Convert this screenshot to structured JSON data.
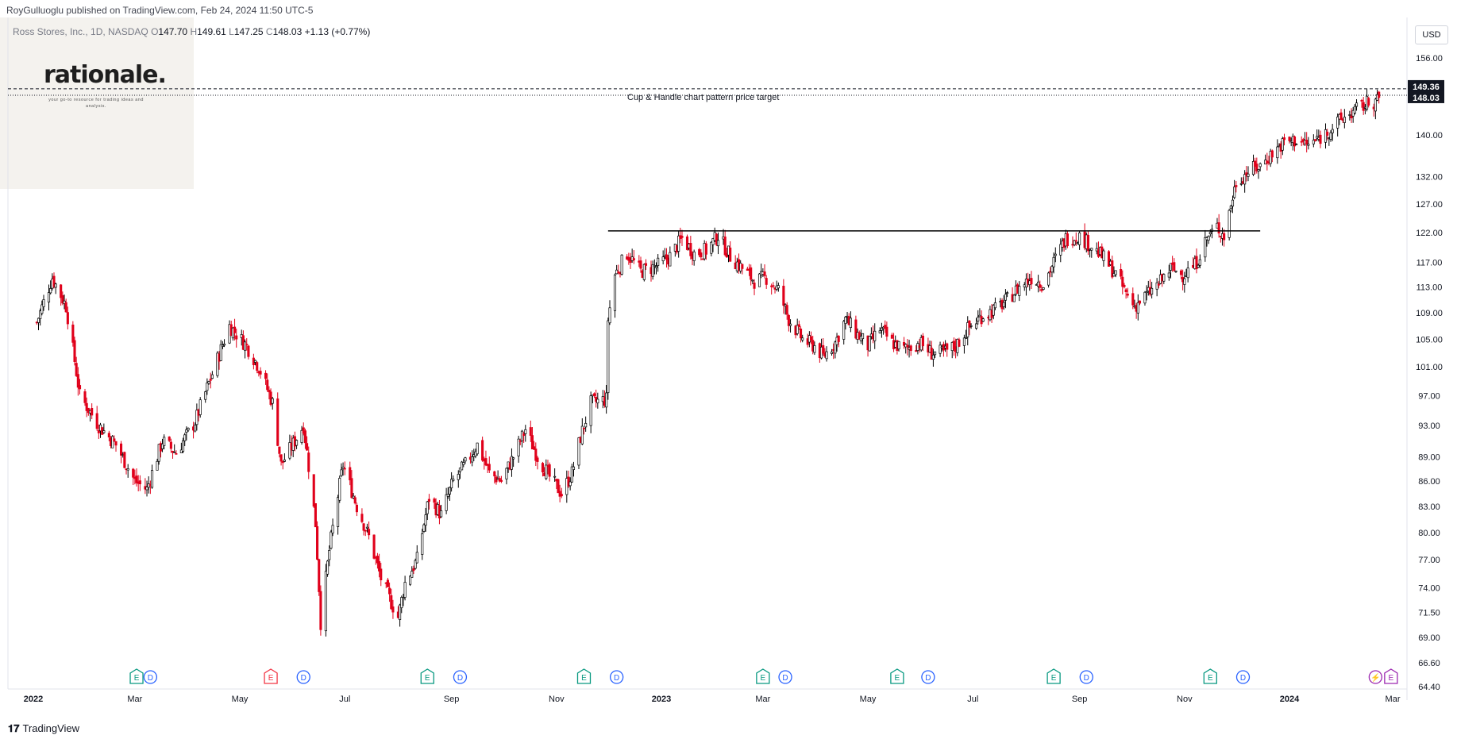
{
  "header": {
    "publisher": "RoyGulluoglu published on TradingView.com, Feb 24, 2024 11:50 UTC-5"
  },
  "symbol": {
    "name": "Ross Stores, Inc., 1D, NASDAQ",
    "o_label": "O",
    "o": "147.70",
    "h_label": "H",
    "h": "149.61",
    "l_label": "L",
    "l": "147.25",
    "c_label": "C",
    "c": "148.03",
    "change": "+1.13 (+0.77%)"
  },
  "logo": {
    "name": "rationale.",
    "tagline": "your go-to resource for trading ideas and analysis."
  },
  "currency": "USD",
  "footer": {
    "brand": "TradingView",
    "icon": "tradingview-logo-icon"
  },
  "colors": {
    "up": "#000000",
    "down": "#e0001a",
    "grid": "#f0f3fa",
    "axis_text": "#131722"
  },
  "chart_data": {
    "type": "candlestick",
    "ticker": "ROST",
    "interval": "1D",
    "y_axis": {
      "scale": "log",
      "ticks": [
        "156.00",
        "149.36",
        "148.03",
        "140.00",
        "132.00",
        "127.00",
        "122.00",
        "117.00",
        "113.00",
        "109.00",
        "105.00",
        "101.00",
        "97.00",
        "93.00",
        "89.00",
        "86.00",
        "83.00",
        "80.00",
        "77.00",
        "74.00",
        "71.50",
        "69.00",
        "66.60",
        "64.40"
      ],
      "range": [
        64.0,
        162.0
      ]
    },
    "x_axis": {
      "ticks": [
        {
          "label": "2022",
          "date": "2022-01-01",
          "bold": true
        },
        {
          "label": "Mar",
          "date": "2022-03-01"
        },
        {
          "label": "May",
          "date": "2022-05-01"
        },
        {
          "label": "Jul",
          "date": "2022-07-01"
        },
        {
          "label": "Sep",
          "date": "2022-09-01"
        },
        {
          "label": "Nov",
          "date": "2022-11-01"
        },
        {
          "label": "2023",
          "date": "2023-01-01",
          "bold": true
        },
        {
          "label": "Mar",
          "date": "2023-03-01"
        },
        {
          "label": "May",
          "date": "2023-05-01"
        },
        {
          "label": "Jul",
          "date": "2023-07-01"
        },
        {
          "label": "Sep",
          "date": "2023-09-01"
        },
        {
          "label": "Nov",
          "date": "2023-11-01"
        },
        {
          "label": "2024",
          "date": "2024-01-01",
          "bold": true
        },
        {
          "label": "Mar",
          "date": "2024-03-01"
        }
      ]
    },
    "last_price": {
      "value": 148.03,
      "label": "148.03"
    },
    "target_price": {
      "value": 149.36,
      "label": "149.36"
    },
    "annotations": [
      {
        "type": "horizontal_line",
        "value": 122.3,
        "from": "2022-12-01",
        "to": "2023-12-15",
        "label": ""
      },
      {
        "type": "horizontal_line_dashed",
        "value": 149.36,
        "label": "Cup & Handle chart pattern price target"
      }
    ],
    "events": [
      {
        "kind": "E",
        "date": "2022-03-02",
        "color": "#089981"
      },
      {
        "kind": "D",
        "date": "2022-03-10",
        "color": "#2962ff"
      },
      {
        "kind": "E",
        "date": "2022-05-19",
        "color": "#f23645"
      },
      {
        "kind": "D",
        "date": "2022-06-07",
        "color": "#2962ff"
      },
      {
        "kind": "E",
        "date": "2022-08-18",
        "color": "#089981"
      },
      {
        "kind": "D",
        "date": "2022-09-06",
        "color": "#2962ff"
      },
      {
        "kind": "E",
        "date": "2022-11-17",
        "color": "#089981"
      },
      {
        "kind": "D",
        "date": "2022-12-06",
        "color": "#2962ff"
      },
      {
        "kind": "E",
        "date": "2023-03-01",
        "color": "#089981"
      },
      {
        "kind": "D",
        "date": "2023-03-14",
        "color": "#2962ff"
      },
      {
        "kind": "E",
        "date": "2023-05-18",
        "color": "#089981"
      },
      {
        "kind": "D",
        "date": "2023-06-05",
        "color": "#2962ff"
      },
      {
        "kind": "E",
        "date": "2023-08-17",
        "color": "#089981"
      },
      {
        "kind": "D",
        "date": "2023-09-05",
        "color": "#2962ff"
      },
      {
        "kind": "E",
        "date": "2023-11-16",
        "color": "#089981"
      },
      {
        "kind": "D",
        "date": "2023-12-05",
        "color": "#2962ff"
      },
      {
        "kind": "S",
        "date": "2024-02-20",
        "color": "#9c27b0"
      },
      {
        "kind": "E",
        "date": "2024-02-29",
        "color": "#9c27b0"
      }
    ],
    "anchors": [
      [
        "2022-01-03",
        107.5
      ],
      [
        "2022-01-12",
        114.5
      ],
      [
        "2022-01-20",
        110.0
      ],
      [
        "2022-01-28",
        97.0
      ],
      [
        "2022-02-08",
        93.0
      ],
      [
        "2022-02-18",
        90.5
      ],
      [
        "2022-03-01",
        86.0
      ],
      [
        "2022-03-08",
        85.0
      ],
      [
        "2022-03-17",
        91.0
      ],
      [
        "2022-03-25",
        89.5
      ],
      [
        "2022-04-05",
        93.5
      ],
      [
        "2022-04-15",
        100.0
      ],
      [
        "2022-04-25",
        107.0
      ],
      [
        "2022-05-05",
        104.0
      ],
      [
        "2022-05-12",
        101.0
      ],
      [
        "2022-05-20",
        96.0
      ],
      [
        "2022-05-25",
        88.0
      ],
      [
        "2022-06-02",
        91.0
      ],
      [
        "2022-06-07",
        93.0
      ],
      [
        "2022-06-14",
        81.0
      ],
      [
        "2022-06-17",
        70.5
      ],
      [
        "2022-06-22",
        78.0
      ],
      [
        "2022-06-30",
        88.0
      ],
      [
        "2022-07-08",
        83.0
      ],
      [
        "2022-07-15",
        79.5
      ],
      [
        "2022-07-22",
        75.0
      ],
      [
        "2022-07-28",
        72.5
      ],
      [
        "2022-08-01",
        71.0
      ],
      [
        "2022-08-05",
        74.5
      ],
      [
        "2022-08-12",
        77.0
      ],
      [
        "2022-08-19",
        84.0
      ],
      [
        "2022-08-26",
        82.0
      ],
      [
        "2022-09-02",
        86.0
      ],
      [
        "2022-09-09",
        88.0
      ],
      [
        "2022-09-16",
        90.5
      ],
      [
        "2022-09-23",
        87.0
      ],
      [
        "2022-09-30",
        86.0
      ],
      [
        "2022-10-07",
        89.0
      ],
      [
        "2022-10-14",
        92.5
      ],
      [
        "2022-10-21",
        89.0
      ],
      [
        "2022-10-28",
        86.5
      ],
      [
        "2022-11-04",
        84.5
      ],
      [
        "2022-11-10",
        87.0
      ],
      [
        "2022-11-15",
        91.5
      ],
      [
        "2022-11-21",
        96.0
      ],
      [
        "2022-11-30",
        96.5
      ],
      [
        "2022-12-01",
        108.0
      ],
      [
        "2022-12-05",
        115.0
      ],
      [
        "2022-12-12",
        118.5
      ],
      [
        "2022-12-20",
        115.5
      ],
      [
        "2022-12-30",
        116.5
      ],
      [
        "2023-01-06",
        118.0
      ],
      [
        "2023-01-13",
        121.0
      ],
      [
        "2023-01-20",
        118.5
      ],
      [
        "2023-01-27",
        119.0
      ],
      [
        "2023-02-03",
        121.5
      ],
      [
        "2023-02-10",
        118.0
      ],
      [
        "2023-02-17",
        116.0
      ],
      [
        "2023-02-24",
        114.0
      ],
      [
        "2023-03-03",
        114.5
      ],
      [
        "2023-03-10",
        112.5
      ],
      [
        "2023-03-16",
        108.0
      ],
      [
        "2023-03-24",
        105.0
      ],
      [
        "2023-03-31",
        104.0
      ],
      [
        "2023-04-05",
        102.5
      ],
      [
        "2023-04-12",
        104.5
      ],
      [
        "2023-04-18",
        108.0
      ],
      [
        "2023-04-24",
        106.0
      ],
      [
        "2023-05-01",
        104.0
      ],
      [
        "2023-05-08",
        106.5
      ],
      [
        "2023-05-15",
        104.5
      ],
      [
        "2023-05-22",
        103.5
      ],
      [
        "2023-05-31",
        104.5
      ],
      [
        "2023-06-07",
        103.0
      ],
      [
        "2023-06-14",
        103.0
      ],
      [
        "2023-06-21",
        104.0
      ],
      [
        "2023-06-28",
        106.5
      ],
      [
        "2023-07-06",
        108.5
      ],
      [
        "2023-07-14",
        109.5
      ],
      [
        "2023-07-21",
        111.0
      ],
      [
        "2023-07-28",
        113.0
      ],
      [
        "2023-08-04",
        114.5
      ],
      [
        "2023-08-11",
        113.5
      ],
      [
        "2023-08-17",
        117.0
      ],
      [
        "2023-08-24",
        121.0
      ],
      [
        "2023-08-31",
        121.5
      ],
      [
        "2023-09-07",
        120.0
      ],
      [
        "2023-09-14",
        118.0
      ],
      [
        "2023-09-21",
        115.5
      ],
      [
        "2023-09-28",
        112.0
      ],
      [
        "2023-10-03",
        110.0
      ],
      [
        "2023-10-09",
        111.5
      ],
      [
        "2023-10-17",
        113.5
      ],
      [
        "2023-10-24",
        116.0
      ],
      [
        "2023-10-31",
        115.0
      ],
      [
        "2023-11-07",
        116.5
      ],
      [
        "2023-11-14",
        121.0
      ],
      [
        "2023-11-20",
        123.0
      ],
      [
        "2023-11-24",
        121.5
      ],
      [
        "2023-12-01",
        131.0
      ],
      [
        "2023-12-08",
        133.0
      ],
      [
        "2023-12-15",
        134.0
      ],
      [
        "2023-12-22",
        136.5
      ],
      [
        "2023-12-29",
        138.5
      ],
      [
        "2024-01-05",
        139.0
      ],
      [
        "2024-01-12",
        138.0
      ],
      [
        "2024-01-19",
        139.5
      ],
      [
        "2024-01-26",
        141.5
      ],
      [
        "2024-02-02",
        143.5
      ],
      [
        "2024-02-09",
        145.0
      ],
      [
        "2024-02-16",
        146.5
      ],
      [
        "2024-02-22",
        147.0
      ],
      [
        "2024-02-23",
        148.03
      ]
    ],
    "grid": false,
    "legend": "top-left"
  }
}
